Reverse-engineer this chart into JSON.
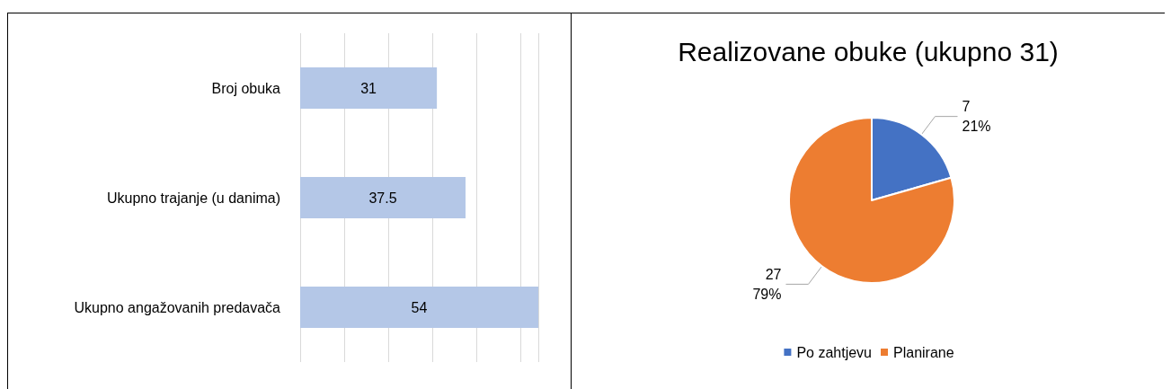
{
  "chart_data": [
    {
      "type": "bar",
      "orientation": "horizontal",
      "categories": [
        "Broj obuka",
        "Ukupno trajanje (u danima)",
        "Ukupno angažovanih predavača"
      ],
      "values": [
        31,
        37.5,
        54
      ],
      "data_labels": true,
      "color": "#b4c7e7",
      "grid": "x"
    },
    {
      "type": "pie",
      "title": "Realizovane obuke (ukupno 31)",
      "categories": [
        "Po zahtjevu",
        "Planirane"
      ],
      "values": [
        7,
        27
      ],
      "value_labels": [
        "7\n21%",
        "27\n79%"
      ],
      "colors": [
        "#4472c4",
        "#ed7d31"
      ],
      "legend": "bottom"
    }
  ]
}
